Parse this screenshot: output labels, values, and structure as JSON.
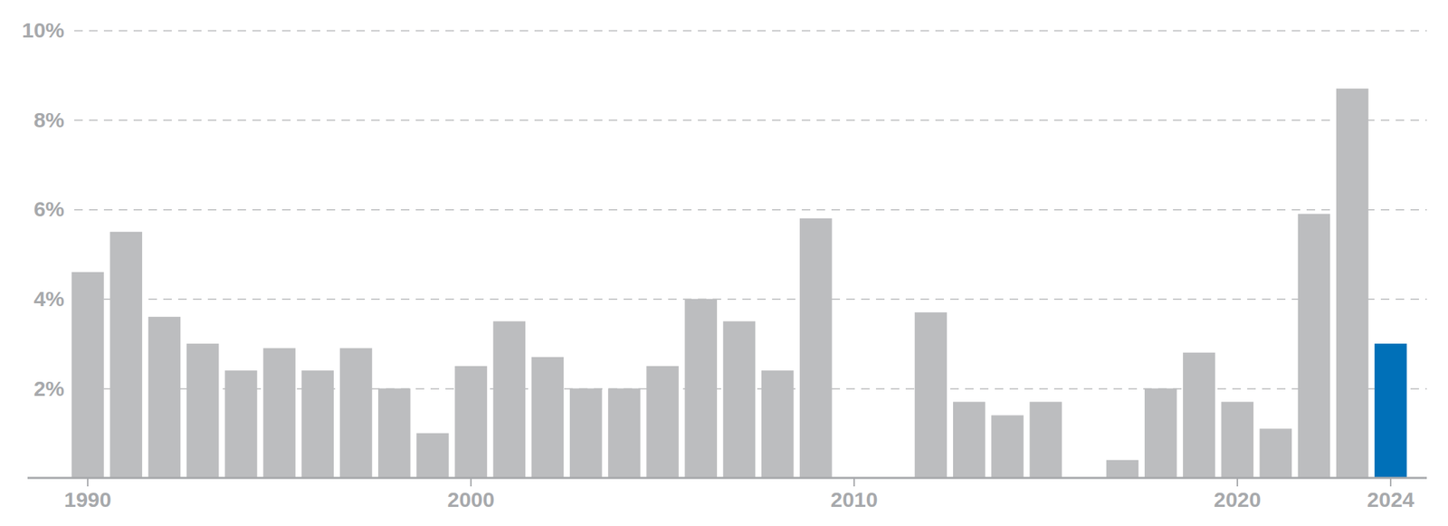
{
  "chart_data": {
    "type": "bar",
    "categories": [
      "1990",
      null,
      null,
      null,
      null,
      null,
      null,
      null,
      null,
      null,
      "2000",
      null,
      null,
      null,
      null,
      null,
      null,
      null,
      null,
      null,
      "2010",
      null,
      null,
      null,
      null,
      null,
      null,
      null,
      null,
      null,
      "2020",
      null,
      null,
      null,
      "2024"
    ],
    "values": [
      4.6,
      5.5,
      3.6,
      3.0,
      2.4,
      2.9,
      2.4,
      2.9,
      2.0,
      1.0,
      2.5,
      3.5,
      2.7,
      2.0,
      2.0,
      2.5,
      4.0,
      3.5,
      2.4,
      5.8,
      0,
      0,
      3.7,
      1.7,
      1.4,
      1.7,
      0,
      0.4,
      2.0,
      2.8,
      1.7,
      1.1,
      5.9,
      8.7,
      3.0
    ],
    "colors": [
      "#bcbdbf",
      "#bcbdbf",
      "#bcbdbf",
      "#bcbdbf",
      "#bcbdbf",
      "#bcbdbf",
      "#bcbdbf",
      "#bcbdbf",
      "#bcbdbf",
      "#bcbdbf",
      "#bcbdbf",
      "#bcbdbf",
      "#bcbdbf",
      "#bcbdbf",
      "#bcbdbf",
      "#bcbdbf",
      "#bcbdbf",
      "#bcbdbf",
      "#bcbdbf",
      "#bcbdbf",
      "#bcbdbf",
      "#bcbdbf",
      "#bcbdbf",
      "#bcbdbf",
      "#bcbdbf",
      "#bcbdbf",
      "#bcbdbf",
      "#bcbdbf",
      "#bcbdbf",
      "#bcbdbf",
      "#bcbdbf",
      "#bcbdbf",
      "#bcbdbf",
      "#bcbdbf",
      "#0070b8"
    ],
    "ylim": [
      0,
      10
    ],
    "yticks": [
      {
        "value": 2,
        "label": "2%"
      },
      {
        "value": 4,
        "label": "4%"
      },
      {
        "value": 6,
        "label": "6%"
      },
      {
        "value": 8,
        "label": "8%"
      },
      {
        "value": 10,
        "label": "10%"
      }
    ],
    "grid": true
  }
}
